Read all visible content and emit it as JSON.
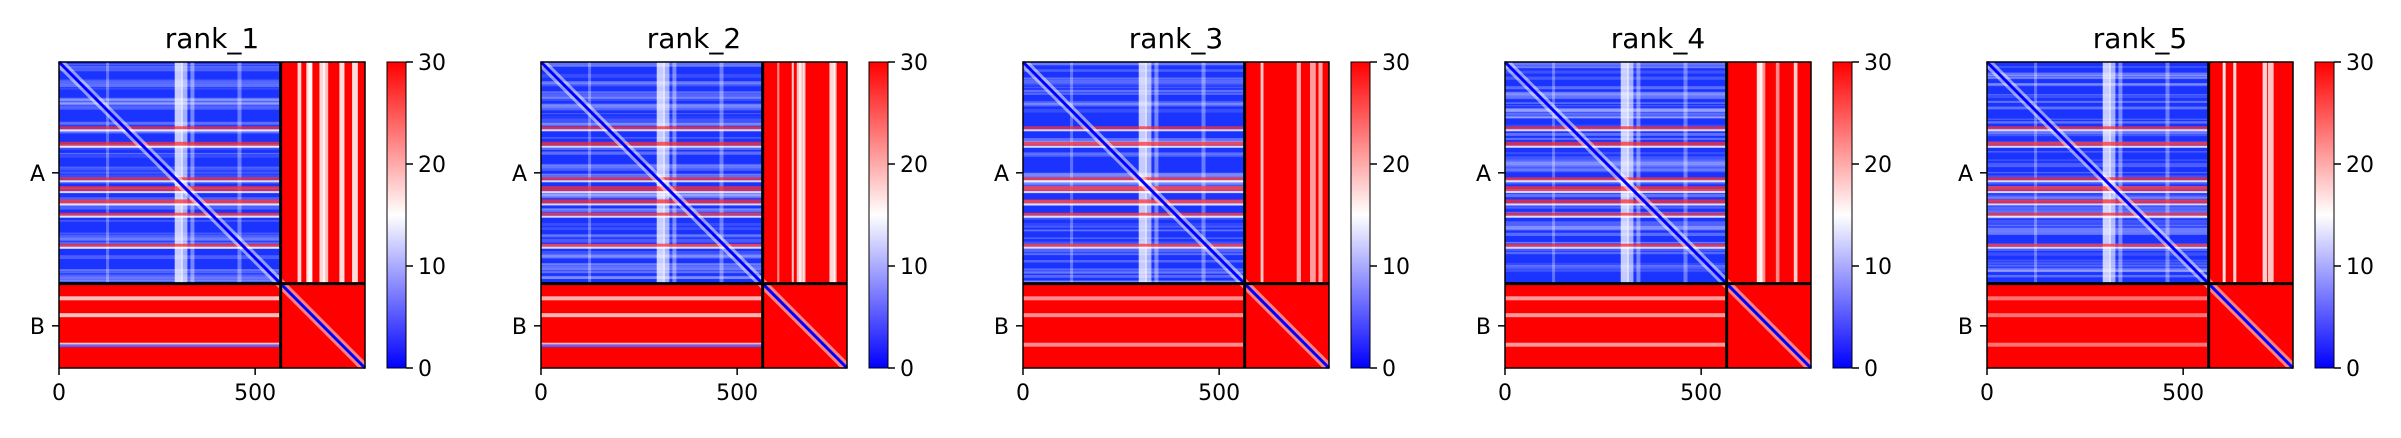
{
  "colors": {
    "low": "#0000ff",
    "mid": "#ffffff",
    "high": "#ff0000",
    "divider": "#000000"
  },
  "chart_data": [
    {
      "type": "heatmap",
      "title": "rank_1",
      "chains": [
        "A",
        "B"
      ],
      "chain_boundary": 565,
      "sequence_length": 780,
      "xticks": [
        0,
        500
      ],
      "xlim": [
        0,
        780
      ],
      "colorbar": {
        "ticks": [
          0,
          10,
          20,
          30
        ],
        "range": [
          0,
          30
        ],
        "colors": [
          "blue",
          "white",
          "red"
        ]
      },
      "b_block_band_intensity": 0.35
    },
    {
      "type": "heatmap",
      "title": "rank_2",
      "chains": [
        "A",
        "B"
      ],
      "chain_boundary": 565,
      "sequence_length": 780,
      "xticks": [
        0,
        500
      ],
      "xlim": [
        0,
        780
      ],
      "colorbar": {
        "ticks": [
          0,
          10,
          20,
          30
        ],
        "range": [
          0,
          30
        ],
        "colors": [
          "blue",
          "white",
          "red"
        ]
      },
      "b_block_band_intensity": 0.3
    },
    {
      "type": "heatmap",
      "title": "rank_3",
      "chains": [
        "A",
        "B"
      ],
      "chain_boundary": 565,
      "sequence_length": 780,
      "xticks": [
        0,
        500
      ],
      "xlim": [
        0,
        780
      ],
      "colorbar": {
        "ticks": [
          0,
          10,
          20,
          30
        ],
        "range": [
          0,
          30
        ],
        "colors": [
          "blue",
          "white",
          "red"
        ]
      },
      "b_block_band_intensity": 0.15
    },
    {
      "type": "heatmap",
      "title": "rank_4",
      "chains": [
        "A",
        "B"
      ],
      "chain_boundary": 565,
      "sequence_length": 780,
      "xticks": [
        0,
        500
      ],
      "xlim": [
        0,
        780
      ],
      "colorbar": {
        "ticks": [
          0,
          10,
          20,
          30
        ],
        "range": [
          0,
          30
        ],
        "colors": [
          "blue",
          "white",
          "red"
        ]
      },
      "b_block_band_intensity": 0.2
    },
    {
      "type": "heatmap",
      "title": "rank_5",
      "chains": [
        "A",
        "B"
      ],
      "chain_boundary": 565,
      "sequence_length": 780,
      "xticks": [
        0,
        500
      ],
      "xlim": [
        0,
        780
      ],
      "colorbar": {
        "ticks": [
          0,
          10,
          20,
          30
        ],
        "range": [
          0,
          30
        ],
        "colors": [
          "blue",
          "white",
          "red"
        ]
      },
      "b_block_band_intensity": 0.05
    }
  ]
}
